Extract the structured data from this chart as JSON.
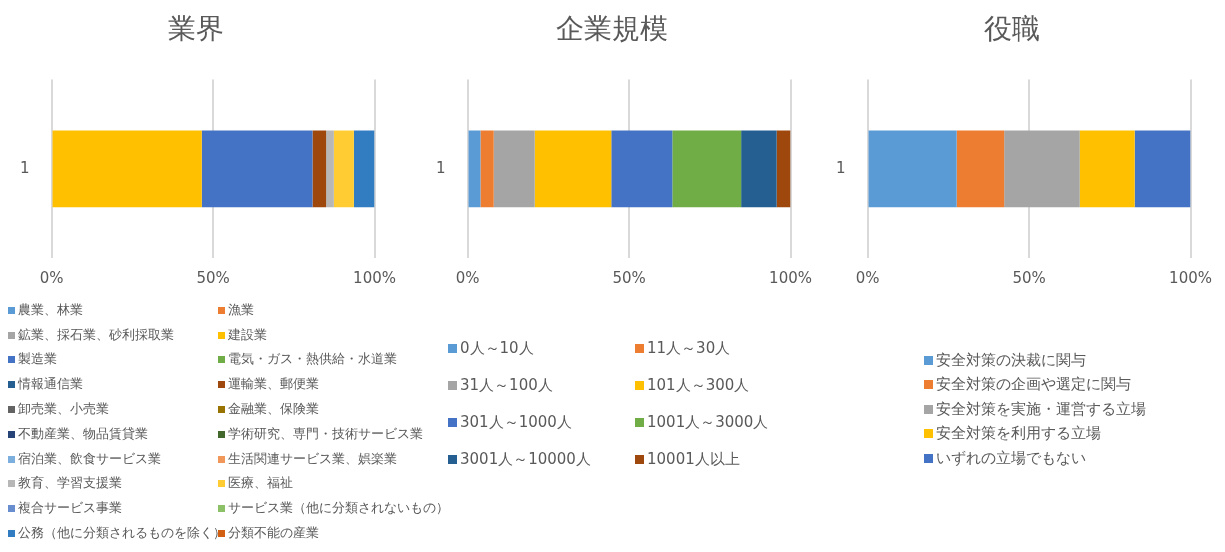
{
  "chart_data": [
    {
      "type": "bar",
      "title": "業界",
      "orientation": "horizontal",
      "stacked": true,
      "categories": [
        "1"
      ],
      "xlim": [
        0,
        100
      ],
      "xticks": [
        {
          "value": 0,
          "label": "0%"
        },
        {
          "value": 50,
          "label": "50%"
        },
        {
          "value": 100,
          "label": "100%"
        }
      ],
      "grid": "x",
      "legend": "bottom",
      "series": [
        {
          "name": "農業、林業",
          "color": "#5b9bd5",
          "values": [
            0
          ]
        },
        {
          "name": "漁業",
          "color": "#ed7d31",
          "values": [
            0
          ]
        },
        {
          "name": "鉱業、採石業、砂利採取業",
          "color": "#a5a5a5",
          "values": [
            0
          ]
        },
        {
          "name": "建設業",
          "color": "#ffc000",
          "values": [
            46.5
          ]
        },
        {
          "name": "製造業",
          "color": "#4472c4",
          "values": [
            34.3
          ]
        },
        {
          "name": "電気・ガス・熱供給・水道業",
          "color": "#70ad47",
          "values": [
            0
          ]
        },
        {
          "name": "情報通信業",
          "color": "#255e91",
          "values": [
            0
          ]
        },
        {
          "name": "運輸業、郵便業",
          "color": "#9e480e",
          "values": [
            4.2
          ]
        },
        {
          "name": "卸売業、小売業",
          "color": "#636363",
          "values": [
            0
          ]
        },
        {
          "name": "金融業、保険業",
          "color": "#997300",
          "values": [
            0
          ]
        },
        {
          "name": "不動産業、物品賃貸業",
          "color": "#264478",
          "values": [
            0
          ]
        },
        {
          "name": "学術研究、専門・技術サービス業",
          "color": "#43682b",
          "values": [
            0
          ]
        },
        {
          "name": "宿泊業、飲食サービス業",
          "color": "#7cafdd",
          "values": [
            0
          ]
        },
        {
          "name": "生活関連サービス業、娯楽業",
          "color": "#f1975a",
          "values": [
            0
          ]
        },
        {
          "name": "教育、学習支援業",
          "color": "#b7b7b7",
          "values": [
            2.4
          ]
        },
        {
          "name": "医療、福祉",
          "color": "#ffcd33",
          "values": [
            6.2
          ]
        },
        {
          "name": "複合サービス事業",
          "color": "#698ed0",
          "values": [
            0
          ]
        },
        {
          "name": "サービス業（他に分類されないもの）",
          "color": "#8cc168",
          "values": [
            0
          ]
        },
        {
          "name": "公務（他に分類されるものを除く）",
          "color": "#327dc2",
          "values": [
            6.4
          ]
        },
        {
          "name": "分類不能の産業",
          "color": "#d26012",
          "values": [
            0
          ]
        }
      ]
    },
    {
      "type": "bar",
      "title": "企業規模",
      "orientation": "horizontal",
      "stacked": true,
      "categories": [
        "1"
      ],
      "xlim": [
        0,
        100
      ],
      "xticks": [
        {
          "value": 0,
          "label": "0%"
        },
        {
          "value": 50,
          "label": "50%"
        },
        {
          "value": 100,
          "label": "100%"
        }
      ],
      "grid": "x",
      "legend": "bottom",
      "series": [
        {
          "name": "0人～10人",
          "color": "#5b9bd5",
          "values": [
            4.0
          ]
        },
        {
          "name": "11人～30人",
          "color": "#ed7d31",
          "values": [
            4.1
          ]
        },
        {
          "name": "31人～100人",
          "color": "#a5a5a5",
          "values": [
            12.7
          ]
        },
        {
          "name": "101人～300人",
          "color": "#ffc000",
          "values": [
            23.7
          ]
        },
        {
          "name": "301人～1000人",
          "color": "#4472c4",
          "values": [
            18.9
          ]
        },
        {
          "name": "1001人～3000人",
          "color": "#70ad47",
          "values": [
            21.3
          ]
        },
        {
          "name": "3001人～10000人",
          "color": "#255e91",
          "values": [
            11.0
          ]
        },
        {
          "name": "10001人以上",
          "color": "#9e480e",
          "values": [
            4.3
          ]
        }
      ]
    },
    {
      "type": "bar",
      "title": "役職",
      "orientation": "horizontal",
      "stacked": true,
      "categories": [
        "1"
      ],
      "xlim": [
        0,
        100
      ],
      "xticks": [
        {
          "value": 0,
          "label": "0%"
        },
        {
          "value": 50,
          "label": "50%"
        },
        {
          "value": 100,
          "label": "100%"
        }
      ],
      "grid": "x",
      "legend": "bottom",
      "series": [
        {
          "name": "安全対策の決裁に関与",
          "color": "#5b9bd5",
          "values": [
            27.6
          ]
        },
        {
          "name": "安全対策の企画や選定に関与",
          "color": "#ed7d31",
          "values": [
            14.7
          ]
        },
        {
          "name": "安全対策を実施・運営する立場",
          "color": "#a5a5a5",
          "values": [
            23.4
          ]
        },
        {
          "name": "安全対策を利用する立場",
          "color": "#ffc000",
          "values": [
            17.0
          ]
        },
        {
          "name": "いずれの立場でもない",
          "color": "#4472c4",
          "values": [
            17.3
          ]
        }
      ]
    }
  ]
}
